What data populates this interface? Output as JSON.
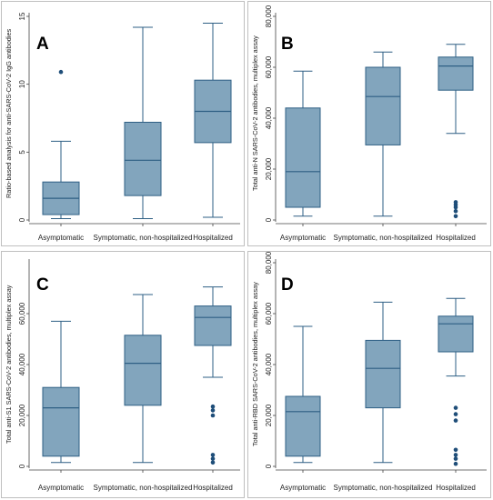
{
  "colors": {
    "box": "#82a5bd",
    "line": "#2e5f84",
    "outlier": "#1f4e79",
    "axis": "#444444"
  },
  "chart_data": [
    {
      "type": "box",
      "letter": "A",
      "ylabel": "Ratio-based analysis for anti-SARS-CoV-2 IgG antibodies",
      "ylim": [
        0,
        15
      ],
      "yticks": [
        0,
        5,
        10,
        15
      ],
      "ytick_labels": [
        "0",
        "5",
        "10",
        "15"
      ],
      "categories": [
        "Asymptomatic",
        "Symptomatic, non-hospitalized",
        "Hospitalized"
      ],
      "boxes": [
        {
          "whisker_low": 0.1,
          "q1": 0.4,
          "median": 1.6,
          "q3": 2.8,
          "whisker_high": 5.8,
          "outliers": [
            10.9
          ]
        },
        {
          "whisker_low": 0.1,
          "q1": 1.8,
          "median": 4.4,
          "q3": 7.2,
          "whisker_high": 14.2,
          "outliers": []
        },
        {
          "whisker_low": 0.2,
          "q1": 5.7,
          "median": 8.0,
          "q3": 10.3,
          "whisker_high": 14.5,
          "outliers": []
        }
      ]
    },
    {
      "type": "box",
      "letter": "B",
      "ylabel": "Total anti-N SARS-CoV-2 antibodies, multiplex assay",
      "ylim": [
        0,
        80000
      ],
      "yticks": [
        0,
        20000,
        40000,
        60000,
        80000
      ],
      "ytick_labels": [
        "0",
        "20,000",
        "40,000",
        "60,000",
        "80,000"
      ],
      "categories": [
        "Asymptomatic",
        "Symptomatic, non-hospitalized",
        "Hospitalized"
      ],
      "boxes": [
        {
          "whisker_low": 1500,
          "q1": 5000,
          "median": 19000,
          "q3": 44000,
          "whisker_high": 58500,
          "outliers": []
        },
        {
          "whisker_low": 1500,
          "q1": 29500,
          "median": 48500,
          "q3": 60000,
          "whisker_high": 66000,
          "outliers": []
        },
        {
          "whisker_low": 34000,
          "q1": 51000,
          "median": 60500,
          "q3": 64000,
          "whisker_high": 69000,
          "outliers": [
            1500,
            3500,
            5000,
            6000,
            7000
          ]
        }
      ]
    },
    {
      "type": "box",
      "letter": "C",
      "ylabel": "Total anti-S1 SARS-CoV-2 antibodies, multiplex assay",
      "ylim": [
        0,
        80000
      ],
      "yticks": [
        0,
        20000,
        40000,
        60000
      ],
      "ytick_labels": [
        "0",
        "20,000",
        "40,000",
        "60,000"
      ],
      "categories": [
        "Asymptomatic",
        "Symptomatic, non-hospitalized",
        "Hospitalized"
      ],
      "boxes": [
        {
          "whisker_low": 1500,
          "q1": 4000,
          "median": 23000,
          "q3": 31000,
          "whisker_high": 57000,
          "outliers": []
        },
        {
          "whisker_low": 1500,
          "q1": 24000,
          "median": 40500,
          "q3": 51500,
          "whisker_high": 67500,
          "outliers": []
        },
        {
          "whisker_low": 35000,
          "q1": 47500,
          "median": 58500,
          "q3": 63000,
          "whisker_high": 70500,
          "outliers": [
            1500,
            3000,
            4500,
            20000,
            22000,
            23500
          ]
        }
      ]
    },
    {
      "type": "box",
      "letter": "D",
      "ylabel": "Total anti-RBD SARS-CoV-2 antibodies, multiplex assay",
      "ylim": [
        0,
        80000
      ],
      "yticks": [
        0,
        20000,
        40000,
        60000,
        80000
      ],
      "ytick_labels": [
        "0",
        "20,000",
        "40,000",
        "60,000",
        "80,000"
      ],
      "categories": [
        "Asymptomatic",
        "Symptomatic, non-hospitalized",
        "Hospitalized"
      ],
      "boxes": [
        {
          "whisker_low": 1500,
          "q1": 4000,
          "median": 21500,
          "q3": 27500,
          "whisker_high": 55000,
          "outliers": []
        },
        {
          "whisker_low": 1500,
          "q1": 23000,
          "median": 38500,
          "q3": 49500,
          "whisker_high": 64500,
          "outliers": []
        },
        {
          "whisker_low": 35500,
          "q1": 45000,
          "median": 56000,
          "q3": 59000,
          "whisker_high": 66000,
          "outliers": [
            1000,
            3000,
            4500,
            6500,
            18000,
            20500,
            23000
          ]
        }
      ]
    }
  ]
}
